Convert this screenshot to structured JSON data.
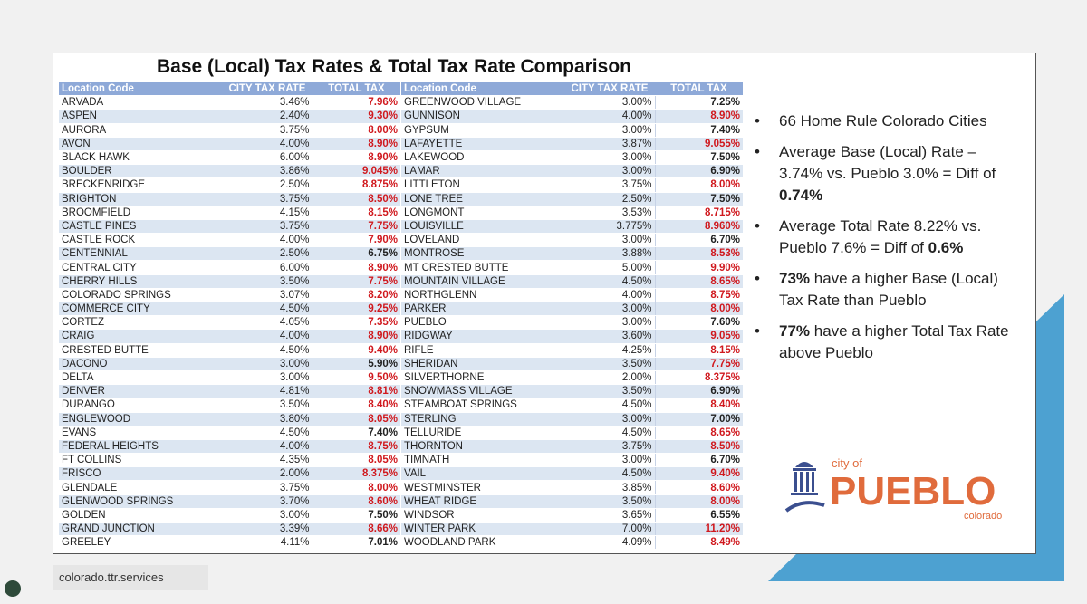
{
  "title": "Base (Local) Tax Rates & Total Tax Rate Comparison",
  "table_header": [
    "Location Code",
    "CITY TAX RATE",
    "TOTAL TAX"
  ],
  "tables": [
    [
      {
        "location": "ARVADA",
        "city_rate": "3.46%",
        "total_rate": "7.96%",
        "total_color": "#d0191e"
      },
      {
        "location": "ASPEN",
        "city_rate": "2.40%",
        "total_rate": "9.30%",
        "total_color": "#d0191e"
      },
      {
        "location": "AURORA",
        "city_rate": "3.75%",
        "total_rate": "8.00%",
        "total_color": "#d0191e"
      },
      {
        "location": "AVON",
        "city_rate": "4.00%",
        "total_rate": "8.90%",
        "total_color": "#d0191e"
      },
      {
        "location": "BLACK HAWK",
        "city_rate": "6.00%",
        "total_rate": "8.90%",
        "total_color": "#d0191e"
      },
      {
        "location": "BOULDER",
        "city_rate": "3.86%",
        "total_rate": "9.045%",
        "total_color": "#d0191e"
      },
      {
        "location": "BRECKENRIDGE",
        "city_rate": "2.50%",
        "total_rate": "8.875%",
        "total_color": "#d0191e"
      },
      {
        "location": "BRIGHTON",
        "city_rate": "3.75%",
        "total_rate": "8.50%",
        "total_color": "#d0191e"
      },
      {
        "location": "BROOMFIELD",
        "city_rate": "4.15%",
        "total_rate": "8.15%",
        "total_color": "#d0191e"
      },
      {
        "location": "CASTLE PINES",
        "city_rate": "3.75%",
        "total_rate": "7.75%",
        "total_color": "#d0191e"
      },
      {
        "location": "CASTLE ROCK",
        "city_rate": "4.00%",
        "total_rate": "7.90%",
        "total_color": "#d0191e"
      },
      {
        "location": "CENTENNIAL",
        "city_rate": "2.50%",
        "total_rate": "6.75%",
        "total_color": "#222222"
      },
      {
        "location": "CENTRAL CITY",
        "city_rate": "6.00%",
        "total_rate": "8.90%",
        "total_color": "#d0191e"
      },
      {
        "location": "CHERRY HILLS",
        "city_rate": "3.50%",
        "total_rate": "7.75%",
        "total_color": "#d0191e"
      },
      {
        "location": "COLORADO SPRINGS",
        "city_rate": "3.07%",
        "total_rate": "8.20%",
        "total_color": "#d0191e"
      },
      {
        "location": "COMMERCE CITY",
        "city_rate": "4.50%",
        "total_rate": "9.25%",
        "total_color": "#d0191e"
      },
      {
        "location": "CORTEZ",
        "city_rate": "4.05%",
        "total_rate": "7.35%",
        "total_color": "#d0191e"
      },
      {
        "location": "CRAIG",
        "city_rate": "4.00%",
        "total_rate": "8.90%",
        "total_color": "#d0191e"
      },
      {
        "location": "CRESTED BUTTE",
        "city_rate": "4.50%",
        "total_rate": "9.40%",
        "total_color": "#d0191e"
      },
      {
        "location": "DACONO",
        "city_rate": "3.00%",
        "total_rate": "5.90%",
        "total_color": "#222222"
      },
      {
        "location": "DELTA",
        "city_rate": "3.00%",
        "total_rate": "9.50%",
        "total_color": "#d0191e"
      },
      {
        "location": "DENVER",
        "city_rate": "4.81%",
        "total_rate": "8.81%",
        "total_color": "#d0191e"
      },
      {
        "location": "DURANGO",
        "city_rate": "3.50%",
        "total_rate": "8.40%",
        "total_color": "#d0191e"
      },
      {
        "location": "ENGLEWOOD",
        "city_rate": "3.80%",
        "total_rate": "8.05%",
        "total_color": "#d0191e"
      },
      {
        "location": "EVANS",
        "city_rate": "4.50%",
        "total_rate": "7.40%",
        "total_color": "#222222"
      },
      {
        "location": "FEDERAL HEIGHTS",
        "city_rate": "4.00%",
        "total_rate": "8.75%",
        "total_color": "#d0191e"
      },
      {
        "location": "FT COLLINS",
        "city_rate": "4.35%",
        "total_rate": "8.05%",
        "total_color": "#d0191e"
      },
      {
        "location": "FRISCO",
        "city_rate": "2.00%",
        "total_rate": "8.375%",
        "total_color": "#d0191e"
      },
      {
        "location": "GLENDALE",
        "city_rate": "3.75%",
        "total_rate": "8.00%",
        "total_color": "#d0191e"
      },
      {
        "location": "GLENWOOD SPRINGS",
        "city_rate": "3.70%",
        "total_rate": "8.60%",
        "total_color": "#d0191e"
      },
      {
        "location": "GOLDEN",
        "city_rate": "3.00%",
        "total_rate": "7.50%",
        "total_color": "#222222"
      },
      {
        "location": "GRAND JUNCTION",
        "city_rate": "3.39%",
        "total_rate": "8.66%",
        "total_color": "#d0191e"
      },
      {
        "location": "GREELEY",
        "city_rate": "4.11%",
        "total_rate": "7.01%",
        "total_color": "#222222"
      }
    ],
    [
      {
        "location": "GREENWOOD VILLAGE",
        "city_rate": "3.00%",
        "total_rate": "7.25%",
        "total_color": "#222222"
      },
      {
        "location": "GUNNISON",
        "city_rate": "4.00%",
        "total_rate": "8.90%",
        "total_color": "#d0191e"
      },
      {
        "location": "GYPSUM",
        "city_rate": "3.00%",
        "total_rate": "7.40%",
        "total_color": "#222222"
      },
      {
        "location": "LAFAYETTE",
        "city_rate": "3.87%",
        "total_rate": "9.055%",
        "total_color": "#d0191e"
      },
      {
        "location": "LAKEWOOD",
        "city_rate": "3.00%",
        "total_rate": "7.50%",
        "total_color": "#222222"
      },
      {
        "location": "LAMAR",
        "city_rate": "3.00%",
        "total_rate": "6.90%",
        "total_color": "#222222"
      },
      {
        "location": "LITTLETON",
        "city_rate": "3.75%",
        "total_rate": "8.00%",
        "total_color": "#d0191e"
      },
      {
        "location": "LONE TREE",
        "city_rate": "2.50%",
        "total_rate": "7.50%",
        "total_color": "#222222"
      },
      {
        "location": "LONGMONT",
        "city_rate": "3.53%",
        "total_rate": "8.715%",
        "total_color": "#d0191e"
      },
      {
        "location": "LOUISVILLE",
        "city_rate": "3.775%",
        "total_rate": "8.960%",
        "total_color": "#d0191e"
      },
      {
        "location": "LOVELAND",
        "city_rate": "3.00%",
        "total_rate": "6.70%",
        "total_color": "#222222"
      },
      {
        "location": "MONTROSE",
        "city_rate": "3.88%",
        "total_rate": "8.53%",
        "total_color": "#d0191e"
      },
      {
        "location": "MT CRESTED BUTTE",
        "city_rate": "5.00%",
        "total_rate": "9.90%",
        "total_color": "#d0191e"
      },
      {
        "location": "MOUNTAIN VILLAGE",
        "city_rate": "4.50%",
        "total_rate": "8.65%",
        "total_color": "#d0191e"
      },
      {
        "location": "NORTHGLENN",
        "city_rate": "4.00%",
        "total_rate": "8.75%",
        "total_color": "#d0191e"
      },
      {
        "location": "PARKER",
        "city_rate": "3.00%",
        "total_rate": "8.00%",
        "total_color": "#d0191e"
      },
      {
        "location": "PUEBLO",
        "city_rate": "3.00%",
        "total_rate": "7.60%",
        "total_color": "#222222"
      },
      {
        "location": "RIDGWAY",
        "city_rate": "3.60%",
        "total_rate": "9.05%",
        "total_color": "#d0191e"
      },
      {
        "location": "RIFLE",
        "city_rate": "4.25%",
        "total_rate": "8.15%",
        "total_color": "#d0191e"
      },
      {
        "location": "SHERIDAN",
        "city_rate": "3.50%",
        "total_rate": "7.75%",
        "total_color": "#d0191e"
      },
      {
        "location": "SILVERTHORNE",
        "city_rate": "2.00%",
        "total_rate": "8.375%",
        "total_color": "#d0191e"
      },
      {
        "location": "SNOWMASS VILLAGE",
        "city_rate": "3.50%",
        "total_rate": "6.90%",
        "total_color": "#222222"
      },
      {
        "location": "STEAMBOAT SPRINGS",
        "city_rate": "4.50%",
        "total_rate": "8.40%",
        "total_color": "#d0191e"
      },
      {
        "location": "STERLING",
        "city_rate": "3.00%",
        "total_rate": "7.00%",
        "total_color": "#222222"
      },
      {
        "location": "TELLURIDE",
        "city_rate": "4.50%",
        "total_rate": "8.65%",
        "total_color": "#d0191e"
      },
      {
        "location": "THORNTON",
        "city_rate": "3.75%",
        "total_rate": "8.50%",
        "total_color": "#d0191e"
      },
      {
        "location": "TIMNATH",
        "city_rate": "3.00%",
        "total_rate": "6.70%",
        "total_color": "#222222"
      },
      {
        "location": "VAIL",
        "city_rate": "4.50%",
        "total_rate": "9.40%",
        "total_color": "#d0191e"
      },
      {
        "location": "WESTMINSTER",
        "city_rate": "3.85%",
        "total_rate": "8.60%",
        "total_color": "#d0191e"
      },
      {
        "location": "WHEAT RIDGE",
        "city_rate": "3.50%",
        "total_rate": "8.00%",
        "total_color": "#d0191e"
      },
      {
        "location": "WINDSOR",
        "city_rate": "3.65%",
        "total_rate": "6.55%",
        "total_color": "#222222"
      },
      {
        "location": "WINTER PARK",
        "city_rate": "7.00%",
        "total_rate": "11.20%",
        "total_color": "#d0191e"
      },
      {
        "location": "WOODLAND PARK",
        "city_rate": "4.09%",
        "total_rate": "8.49%",
        "total_color": "#d0191e"
      }
    ]
  ],
  "bullets": [
    [
      {
        "text": "66 Home Rule Colorado Cities",
        "bold": false
      }
    ],
    [
      {
        "text": "Average Base (Local) Rate – 3.74% vs. Pueblo 3.0% = Diff of ",
        "bold": false
      },
      {
        "text": "0.74%",
        "bold": true
      }
    ],
    [
      {
        "text": "Average Total Rate   8.22% vs. Pueblo 7.6% = Diff of ",
        "bold": false
      },
      {
        "text": "0.6%",
        "bold": true
      }
    ],
    [
      {
        "text": "73%",
        "bold": true
      },
      {
        "text": " have a higher Base (Local) Tax Rate than Pueblo",
        "bold": false
      }
    ],
    [
      {
        "text": "77%",
        "bold": true
      },
      {
        "text": " have a higher Total Tax Rate above Pueblo",
        "bold": false
      }
    ]
  ],
  "logo": {
    "top": "city of",
    "name": "PUEBLO",
    "bottom": "colorado"
  },
  "footer": "colorado.ttr.services"
}
